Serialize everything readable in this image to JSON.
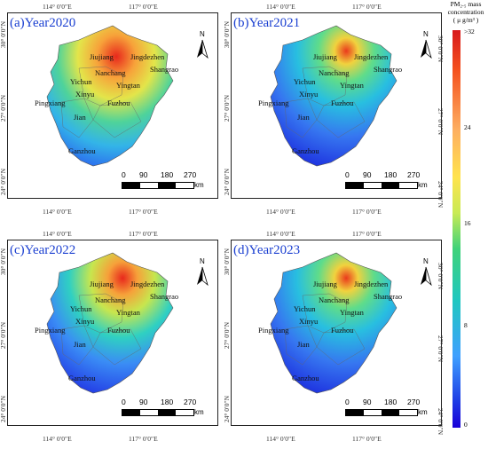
{
  "legend": {
    "title_line1": "PM₂.₅ mass",
    "title_line2": "concentration",
    "title_line3": "( μ g/m³ )",
    "ticks": [
      ">32",
      "24",
      "16",
      "8",
      "0"
    ],
    "colors": [
      "#d7191c",
      "#fdae61",
      "#ffe34d",
      "#3fd27a",
      "#20c7c0",
      "#3fa0ff",
      "#1a00d8"
    ]
  },
  "axes": {
    "top_ticks": [
      "114° 0′0″E",
      "117° 0′0″E"
    ],
    "bottom_ticks": [
      "114° 0′0″E",
      "117° 0′0″E"
    ],
    "left_ticks": [
      "30° 0′0″N",
      "27° 0′0″N",
      "24° 0′0″N"
    ],
    "right_ticks": [
      "30° 0′0″N",
      "27° 0′0″N",
      "24° 0′0″N"
    ]
  },
  "north_label": "N",
  "scale": {
    "labels": [
      "0",
      "90",
      "180",
      "270"
    ],
    "unit": "km"
  },
  "cities": [
    "Jiujiang",
    "Jingdezhen",
    "Nanchang",
    "Shangrao",
    "Yichun",
    "Yingtan",
    "Xinyu",
    "Pingxiang",
    "Fuzhou",
    "Jian",
    "Ganzhou"
  ],
  "panels": [
    {
      "title": "(a)Year2020",
      "level": "high"
    },
    {
      "title": "(b)Year2021",
      "level": "low"
    },
    {
      "title": "(c)Year2022",
      "level": "mid"
    },
    {
      "title": "(d)Year2023",
      "level": "low"
    }
  ]
}
